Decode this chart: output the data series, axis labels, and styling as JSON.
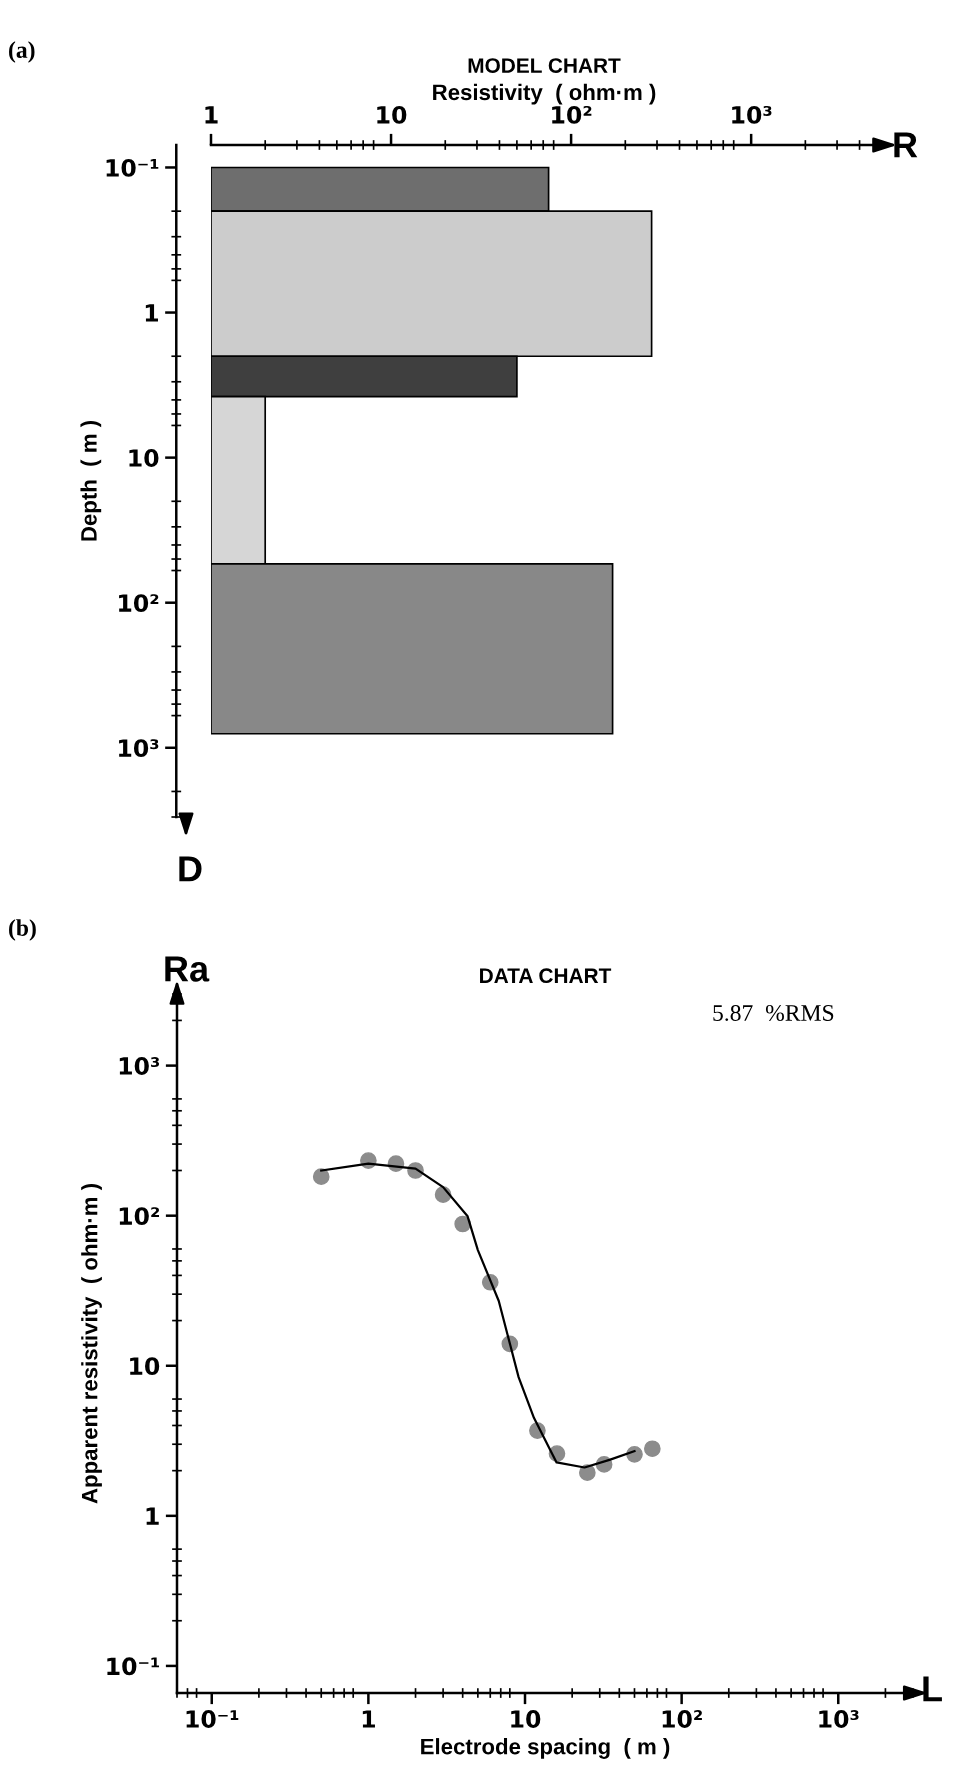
{
  "chart_data": [
    {
      "type": "histogram",
      "orientation": "horizontal",
      "title": "MODEL CHART",
      "xlabel": "Resistivity  ( ohm·m )",
      "ylabel": "Depth  ( m )",
      "bins": [
        0.1,
        0.2,
        2,
        3.8,
        54,
        800
      ],
      "values": [
        75,
        280,
        50,
        2,
        170
      ],
      "colors": [
        "#6e6e6e",
        "#cccccc",
        "#3f3f3f",
        "#d6d6d6",
        "#888888"
      ],
      "log": "xy",
      "xlim": [
        1,
        5000
      ],
      "ylim": [
        3000,
        0.07
      ],
      "xticks": [
        1,
        10,
        {
          "value": 100,
          "label": "10²"
        },
        {
          "value": 1000,
          "label": "10³"
        }
      ],
      "yticks": [
        {
          "value": 0.1,
          "label": "10⁻¹"
        },
        1,
        10,
        {
          "value": 100,
          "label": "10²"
        },
        {
          "value": 1000,
          "label": "10³"
        }
      ],
      "annotations": [
        "(a)",
        "R",
        "D"
      ]
    },
    {
      "type": "scatter",
      "title": "DATA CHART",
      "xlabel": "Electrode spacing  ( m )",
      "ylabel": "Apparent resistivity  ( ohm·m )",
      "log": "xy",
      "xlim": [
        0.06,
        3000
      ],
      "ylim": [
        0.066,
        3000
      ],
      "xticks": [
        {
          "value": 0.1,
          "label": "10⁻¹"
        },
        1,
        10,
        {
          "value": 100,
          "label": "10²"
        },
        {
          "value": 1000,
          "label": "10³"
        }
      ],
      "yticks": [
        {
          "value": 0.1,
          "label": "10⁻¹"
        },
        1,
        10,
        {
          "value": 100,
          "label": "10²"
        },
        {
          "value": 1000,
          "label": "10³"
        }
      ],
      "series": [
        {
          "type": "scatter",
          "color": "#8c8c8c",
          "marker": "circle",
          "x": [
            0.5,
            1,
            1.5,
            2,
            3,
            4,
            6,
            8,
            12,
            16,
            25,
            32,
            50,
            65
          ],
          "values": [
            182,
            233,
            222,
            200,
            138,
            88,
            36,
            14,
            3.7,
            2.6,
            1.94,
            2.2,
            2.57,
            2.8
          ]
        },
        {
          "type": "line",
          "color": "#000000",
          "marker": "none",
          "x": [
            0.5,
            1,
            2,
            3,
            4.3,
            5,
            6.8,
            9.1,
            11.4,
            15.9,
            24,
            35,
            50
          ],
          "values": [
            200,
            222,
            206,
            155,
            99,
            59,
            27,
            8.4,
            4.5,
            2.27,
            2.1,
            2.37,
            2.7
          ]
        }
      ],
      "annotations": [
        "(b)",
        "Ra",
        "L",
        "5.87  %RMS"
      ]
    }
  ]
}
